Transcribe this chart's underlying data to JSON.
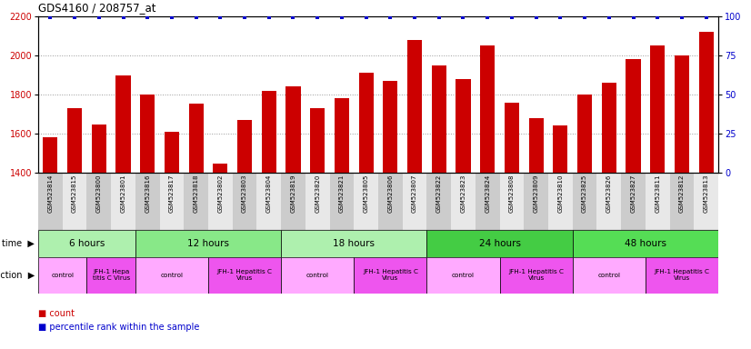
{
  "title": "GDS4160 / 208757_at",
  "samples": [
    "GSM523814",
    "GSM523815",
    "GSM523800",
    "GSM523801",
    "GSM523816",
    "GSM523817",
    "GSM523818",
    "GSM523802",
    "GSM523803",
    "GSM523804",
    "GSM523819",
    "GSM523820",
    "GSM523821",
    "GSM523805",
    "GSM523806",
    "GSM523807",
    "GSM523822",
    "GSM523823",
    "GSM523824",
    "GSM523808",
    "GSM523809",
    "GSM523810",
    "GSM523825",
    "GSM523826",
    "GSM523827",
    "GSM523811",
    "GSM523812",
    "GSM523813"
  ],
  "counts": [
    1580,
    1730,
    1645,
    1900,
    1800,
    1610,
    1755,
    1445,
    1670,
    1820,
    1840,
    1730,
    1780,
    1910,
    1870,
    2080,
    1950,
    1880,
    2050,
    1760,
    1680,
    1640,
    1800,
    1860,
    1980,
    2050,
    2000,
    2120
  ],
  "bar_color": "#cc0000",
  "dot_color": "#0000cc",
  "ylim_left": [
    1400,
    2200
  ],
  "ylim_right": [
    0,
    100
  ],
  "yticks_left": [
    1400,
    1600,
    1800,
    2000,
    2200
  ],
  "yticks_right": [
    0,
    25,
    50,
    75,
    100
  ],
  "dotted_line_values": [
    1600,
    1800,
    2000
  ],
  "dot_pct": 99.5,
  "time_groups": [
    {
      "label": "6 hours",
      "start": 0,
      "end": 4,
      "color": "#aef0ae"
    },
    {
      "label": "12 hours",
      "start": 4,
      "end": 10,
      "color": "#88e888"
    },
    {
      "label": "18 hours",
      "start": 10,
      "end": 16,
      "color": "#aef0ae"
    },
    {
      "label": "24 hours",
      "start": 16,
      "end": 22,
      "color": "#44cc44"
    },
    {
      "label": "48 hours",
      "start": 22,
      "end": 28,
      "color": "#55dd55"
    }
  ],
  "infection_groups": [
    {
      "label": "control",
      "start": 0,
      "end": 2,
      "type": "control"
    },
    {
      "label": "JFH-1 Hepa\ntitis C Virus",
      "start": 2,
      "end": 4,
      "type": "virus"
    },
    {
      "label": "control",
      "start": 4,
      "end": 7,
      "type": "control"
    },
    {
      "label": "JFH-1 Hepatitis C\nVirus",
      "start": 7,
      "end": 10,
      "type": "virus"
    },
    {
      "label": "control",
      "start": 10,
      "end": 13,
      "type": "control"
    },
    {
      "label": "JFH-1 Hepatitis C\nVirus",
      "start": 13,
      "end": 16,
      "type": "virus"
    },
    {
      "label": "control",
      "start": 16,
      "end": 19,
      "type": "control"
    },
    {
      "label": "JFH-1 Hepatitis C\nVirus",
      "start": 19,
      "end": 22,
      "type": "virus"
    },
    {
      "label": "control",
      "start": 22,
      "end": 25,
      "type": "control"
    },
    {
      "label": "JFH-1 Hepatitis C\nVirus",
      "start": 25,
      "end": 28,
      "type": "virus"
    }
  ],
  "control_color": "#ffaaff",
  "virus_color": "#ee55ee",
  "tick_color_left": "#cc0000",
  "tick_color_right": "#0000cc",
  "grid_color": "#999999",
  "label_bg_color": "#dddddd",
  "background_color": "#ffffff"
}
